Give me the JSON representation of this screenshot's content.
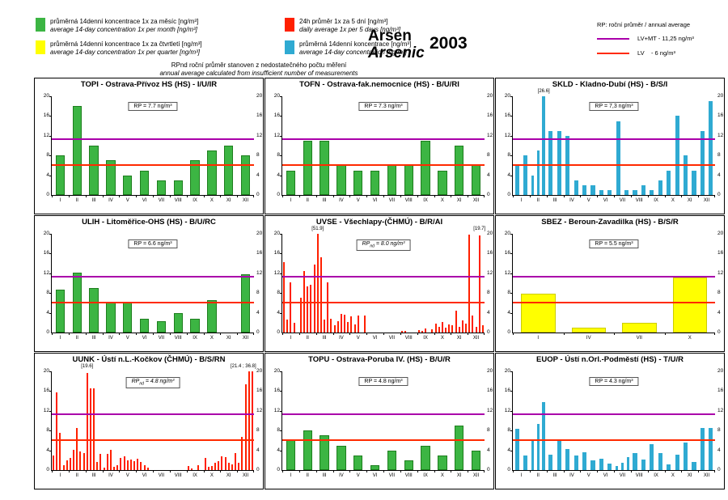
{
  "header": {
    "legend": {
      "items": [
        {
          "key": "green",
          "cz": "průměrná 14denní koncentrace 1x za měsíc [ng/m³]",
          "en": "average 14-day concentration 1x per month [ng/m³]"
        },
        {
          "key": "red",
          "cz": "24h průměr 1x za 5 dní [ng/m³]",
          "en": "daily average 1x per 5 days [ng/m³]"
        },
        {
          "key": "yellow",
          "cz": "průměrná 14denní koncentrace 1x za čtvrtletí [ng/m³]",
          "en": "average 14-day concentration 1x per quarter [ng/m³]"
        },
        {
          "key": "cyan",
          "cz": "průměrná 14denní koncentrace [ng/m³]",
          "en": "average 14-day concentration [ng/m³]"
        }
      ],
      "note_cz": "RPnd  roční průměr stanoven z nedostatečného počtu měření",
      "note_en": "annual average calculated from insufficient number of measurements"
    },
    "title_cz": "Arsen",
    "title_en": "Arsenic",
    "year": "2003",
    "rp_legend": {
      "title": "RP: roční průměr / annual average",
      "lines": [
        {
          "key": "lv_mt",
          "label": "LV+MT - 11,25 ng/m³"
        },
        {
          "key": "lv",
          "label": "LV    - 6 ng/m³"
        }
      ]
    }
  },
  "colors": {
    "green": "#3cb543",
    "green_border": "#1e7e1e",
    "red": "#ff2000",
    "yellow": "#ffff00",
    "yellow_border": "#cccc00",
    "cyan": "#2faad2",
    "lv_mt": "#aa00aa",
    "lv": "#ff2a00"
  },
  "chart_common": {
    "ylim": [
      0,
      20
    ],
    "yticks": [
      0,
      4,
      8,
      12,
      16,
      20
    ],
    "ref_lines": [
      {
        "key": "lv_mt",
        "value": 11.25
      },
      {
        "key": "lv",
        "value": 6
      }
    ]
  },
  "chart_data": [
    {
      "id": "TOPI",
      "type": "bar",
      "station": "TOPI - Ostrava-Přívoz HS (HS) - I/U/IR",
      "series_color": "green",
      "bar_frac": 0.55,
      "bordered": true,
      "rp_label": "RP = 7.7 ng/m³",
      "rp_italic": false,
      "categories": [
        "I",
        "II",
        "III",
        "IV",
        "V",
        "VI",
        "VII",
        "VIII",
        "IX",
        "X",
        "XI",
        "XII"
      ],
      "groups": [
        [
          8
        ],
        [
          18
        ],
        [
          10
        ],
        [
          7
        ],
        [
          4
        ],
        [
          5
        ],
        [
          3
        ],
        [
          3
        ],
        [
          7
        ],
        [
          9
        ],
        [
          10
        ],
        [
          8
        ]
      ],
      "annotations": []
    },
    {
      "id": "TOFN",
      "type": "bar",
      "station": "TOFN - Ostrava-fak.nemocnice (HS) - B/U/RI",
      "series_color": "green",
      "bar_frac": 0.55,
      "bordered": true,
      "rp_label": "RP = 7.3 ng/m³",
      "rp_italic": false,
      "categories": [
        "I",
        "II",
        "III",
        "IV",
        "V",
        "VI",
        "VII",
        "VIII",
        "IX",
        "X",
        "XI",
        "XII"
      ],
      "groups": [
        [
          5
        ],
        [
          11
        ],
        [
          11
        ],
        [
          6
        ],
        [
          5
        ],
        [
          5
        ],
        [
          6
        ],
        [
          6
        ],
        [
          11
        ],
        [
          5
        ],
        [
          10
        ],
        [
          6
        ]
      ],
      "annotations": []
    },
    {
      "id": "SKLD",
      "type": "bar",
      "station": "SKLD - Kladno-Dubí (HS) - B/S/I",
      "series_color": "cyan",
      "bar_frac": 0.5,
      "bordered": false,
      "rp_label": "RP = 7,3 ng/m³",
      "rp_italic": false,
      "categories": [
        "I",
        "II",
        "III",
        "IV",
        "V",
        "VI",
        "VII",
        "VIII",
        "IX",
        "X",
        "XI",
        "XII"
      ],
      "groups": [
        [
          6,
          8
        ],
        [
          4,
          9,
          26.6
        ],
        [
          13,
          13
        ],
        [
          12,
          3
        ],
        [
          2,
          2
        ],
        [
          1,
          1
        ],
        [
          15,
          1
        ],
        [
          1,
          2
        ],
        [
          1,
          3
        ],
        [
          5,
          16
        ],
        [
          8,
          5
        ],
        [
          13,
          19
        ]
      ],
      "annotations": [
        {
          "group": 1,
          "bar": 2,
          "text": "[26.6]"
        }
      ]
    },
    {
      "id": "ULIH",
      "type": "bar",
      "station": "ULIH - Litoměřice-OHS (HS) - B/U/RC",
      "series_color": "green",
      "bar_frac": 0.55,
      "bordered": true,
      "rp_label": "RP = 6.6 ng/m³",
      "rp_italic": false,
      "categories": [
        "I",
        "II",
        "III",
        "IV",
        "V",
        "VI",
        "VII",
        "VIII",
        "IX",
        "X",
        "XI",
        "XII"
      ],
      "groups": [
        [
          8.7
        ],
        [
          12.1
        ],
        [
          9
        ],
        [
          6
        ],
        [
          6
        ],
        [
          2.8
        ],
        [
          2.3
        ],
        [
          3.9
        ],
        [
          2.8
        ],
        [
          6.6
        ],
        [
          0
        ],
        [
          11.8
        ]
      ],
      "annotations": []
    },
    {
      "id": "UVSE",
      "type": "bar",
      "station": "UVSE - Všechlapy-(ČHMÚ) - B/R/AI",
      "series_color": "red",
      "bar_frac": 0.45,
      "bordered": false,
      "rp_label": "RPnd = 8.0 ng/m³",
      "rp_italic": true,
      "categories": [
        "I",
        "II",
        "III",
        "IV",
        "V",
        "VI",
        "VII",
        "VIII",
        "IX",
        "X",
        "XI",
        "XII"
      ],
      "groups": [
        [
          14.3,
          2.6,
          10.2,
          2.0,
          0
        ],
        [
          7.0,
          12.4,
          9.4,
          9.6,
          13.8
        ],
        [
          51.9,
          15.3,
          2.7,
          10.2,
          2.8
        ],
        [
          1.5,
          2.3,
          3.7,
          3.6,
          2.2
        ],
        [
          3.2,
          1.7,
          3.5,
          0,
          3.5
        ],
        [
          0,
          0,
          0,
          0,
          0
        ],
        [
          0,
          0,
          0,
          0,
          0
        ],
        [
          0.3,
          0.4,
          0,
          0,
          0
        ],
        [
          0.5,
          0.3,
          0.8,
          0,
          0.6
        ],
        [
          1.8,
          1.2,
          2.2,
          1.0,
          1.6
        ],
        [
          1.5,
          4.4,
          1.2,
          2.5,
          1.8
        ],
        [
          19.8,
          3.5,
          1.2,
          19.7,
          1.4
        ]
      ],
      "annotations": [
        {
          "group": 2,
          "bar": 0,
          "text": "[51.9]"
        },
        {
          "group": 11,
          "bar": 3,
          "text": "[19.7]"
        }
      ]
    },
    {
      "id": "SBEZ",
      "type": "bar",
      "station": "SBEZ - Beroun-Zavadilka (HS) - B/S/R",
      "series_color": "yellow",
      "bar_frac": 0.68,
      "bordered": true,
      "rp_label": "RP = 5.5 ng/m³",
      "rp_italic": false,
      "categories": [
        "I",
        "IV",
        "VII",
        "X"
      ],
      "groups": [
        [
          7.9
        ],
        [
          1
        ],
        [
          2
        ],
        [
          11.1
        ]
      ],
      "annotations": []
    },
    {
      "id": "UUNK",
      "type": "bar",
      "station": "UUNK - Ústí n.L.-Kočkov (ČHMÚ) - B/S/RN",
      "series_color": "red",
      "bar_frac": 0.45,
      "bordered": false,
      "rp_label": "RPnd = 4.8 ng/m³",
      "rp_italic": true,
      "categories": [
        "I",
        "II",
        "III",
        "IV",
        "V",
        "VI",
        "VII",
        "VIII",
        "IX",
        "X",
        "XI",
        "XII"
      ],
      "groups": [
        [
          2.9,
          15.7,
          7.5,
          1.0,
          2.0
        ],
        [
          2.4,
          4.1,
          8.6,
          3.8,
          3.4
        ],
        [
          19.6,
          16.6,
          16.6,
          1.6,
          3.3
        ],
        [
          0.5,
          3.2,
          4.1,
          0.6,
          1.0
        ],
        [
          2.4,
          2.8,
          1.9,
          2.2,
          1.8
        ],
        [
          2.3,
          1.6,
          1.0,
          0.5,
          0
        ],
        [
          0,
          0,
          0,
          0,
          0
        ],
        [
          0,
          0,
          0,
          0,
          0
        ],
        [
          0.9,
          0.4,
          0,
          1.0,
          0
        ],
        [
          2.4,
          0.6,
          0.8,
          1.5,
          1.8
        ],
        [
          2.8,
          2.7,
          1.5,
          1.2,
          3.5
        ],
        [
          1.4,
          6.8,
          17.3,
          21.4,
          36.8
        ]
      ],
      "annotations": [
        {
          "group": 2,
          "bar": 0,
          "text": "[19.6]"
        },
        {
          "group": 11,
          "bar": 4,
          "text": "[21.4 ; 36.8]",
          "align": "right"
        }
      ]
    },
    {
      "id": "TOPU",
      "type": "bar",
      "station": "TOPU - Ostrava-Poruba IV. (HS) - B/U/R",
      "series_color": "green",
      "bar_frac": 0.55,
      "bordered": true,
      "rp_label": "RP = 4.8 ng/m³",
      "rp_italic": false,
      "categories": [
        "I",
        "II",
        "III",
        "IV",
        "V",
        "VI",
        "VII",
        "VIII",
        "IX",
        "X",
        "XI",
        "XII"
      ],
      "groups": [
        [
          6
        ],
        [
          8
        ],
        [
          7
        ],
        [
          5
        ],
        [
          3
        ],
        [
          1
        ],
        [
          4
        ],
        [
          2
        ],
        [
          5
        ],
        [
          3
        ],
        [
          9
        ],
        [
          4
        ]
      ],
      "annotations": []
    },
    {
      "id": "EUOP",
      "type": "bar",
      "station": "EUOP - Ústí n.Orl.-Podměstí (HS) - T/U/R",
      "series_color": "cyan",
      "bar_frac": 0.5,
      "bordered": false,
      "rp_label": "RP = 4.3 ng/m³",
      "rp_italic": false,
      "categories": [
        "I",
        "II",
        "III",
        "IV",
        "V",
        "VI",
        "VII",
        "VIII",
        "IX",
        "X",
        "XI",
        "XII"
      ],
      "groups": [
        [
          8.4,
          3.0
        ],
        [
          6.0,
          9.3,
          13.8
        ],
        [
          3.1,
          6.0
        ],
        [
          4.3,
          2.9
        ],
        [
          3.6,
          1.9
        ],
        [
          2.3,
          1.3
        ],
        [
          0.8,
          1.5,
          2.6
        ],
        [
          3.4,
          2.1
        ],
        [
          5.2,
          3.4
        ],
        [
          1.1,
          3.1
        ],
        [
          5.5,
          1.6
        ],
        [
          8.6,
          8.6
        ]
      ],
      "annotations": []
    }
  ]
}
